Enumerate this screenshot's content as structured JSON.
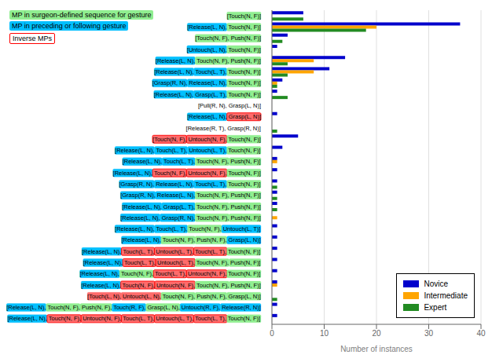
{
  "chart_data": {
    "type": "bar",
    "orientation": "horizontal",
    "xlabel": "Number of instances",
    "xlim": [
      0,
      40
    ],
    "xticks": [
      0,
      10,
      20,
      30,
      40
    ],
    "grid": true,
    "legend": "lower right",
    "categories": [
      "[Touch(N, F)]",
      "[Release(L, N), Touch(N, F)]",
      "[Touch(N, F), Push(N, F)]",
      "[Untouch(L, N), Touch(N, F)]",
      "[Release(L, N), Touch(N, F), Push(N, F)]",
      "[Release(L, N), Touch(L, T), Touch(N, F)]",
      "[Grasp(R, N), Release(L, N), Touch(N, F)]",
      "[Release(L, N), Grasp(L, T), Touch(N, F)]",
      "[Pull(R, N), Grasp(L, N)]",
      "[Release(L, N), Grasp(L, N)]",
      "[Release(R, T), Grasp(R, N)]",
      "[Touch(N, F), Untouch(N, F), Touch(N, F)]",
      "[Release(L, N), Touch(L, T), Untouch(L, T), Touch(N, F)]",
      "[Release(L, N), Touch(L, T), Touch(N, F), Push(N, F)]",
      "[Release(L, N), Touch(N, F), Untouch(N, F), Touch(N, F)]",
      "[Grasp(R, N), Release(L, N), Touch(L, T), Touch(N, F)]",
      "[Grasp(R, N), Release(L, N), Touch(N, F), Push(N, F)]",
      "[Release(L, N), Grasp(L, T), Touch(N, F), Push(N, F)]",
      "[Release(L, N), Grasp(R, N), Touch(N, F), Push(N, F)]",
      "[Release(L, N), Touch(L, T), Touch(N, F), Untouch(L, T)]",
      "[Release(L, N), Touch(N, F), Push(N, F), Grasp(L, N)]",
      "[Release(L, N), Touch(L, T), Untouch(L, T), Touch(L, T), Touch(N, F)]",
      "[Release(L, N), Touch(L, T), Untouch(L, T), Touch(N, F), Push(N, F)]",
      "[Release(L, N), Touch(N, F), Touch(L, T), Untouch(N, F), Touch(N, F)]",
      "[Release(L, N), Touch(N, F), Untouch(N, F), Touch(N, F), Push(N, F)]",
      "[Touch(L, N), Untouch(L, N), Touch(N, F), Push(N, F), Grasp(L, N)]",
      "[Release(L, N), Touch(N, F), Push(N, F), Touch(R, F), Grasp(L, N), Untouch(R, F), Release(R, N)]",
      "[Release(L, N), Touch(N, F), Untouch(N, F), Touch(L, T), Untouch(L, T), Touch(L, T), Touch(N, F)]"
    ],
    "category_tokens": [
      [
        [
          "[Touch(N, F)]",
          "#90EE90",
          false
        ]
      ],
      [
        [
          "[Release(L, N),",
          "#00BFFF",
          false
        ],
        [
          " Touch(N, F)]",
          "#90EE90",
          false
        ]
      ],
      [
        [
          "[Touch(N, F),",
          "#90EE90",
          false
        ],
        [
          " Push(N, F)]",
          "#90EE90",
          false
        ]
      ],
      [
        [
          "[Untouch(L, N),",
          "#00BFFF",
          false
        ],
        [
          " Touch(N, F)]",
          "#90EE90",
          false
        ]
      ],
      [
        [
          "[Release(L, N),",
          "#00BFFF",
          false
        ],
        [
          " Touch(N, F),",
          "#90EE90",
          false
        ],
        [
          " Push(N, F)]",
          "#90EE90",
          false
        ]
      ],
      [
        [
          "[Release(L, N),",
          "#00BFFF",
          false
        ],
        [
          " Touch(L, T),",
          "#00BFFF",
          false
        ],
        [
          " Touch(N, F)]",
          "#90EE90",
          false
        ]
      ],
      [
        [
          "[Grasp(R, N),",
          "#00BFFF",
          false
        ],
        [
          " Release(L, N),",
          "#00BFFF",
          false
        ],
        [
          " Touch(N, F)]",
          "#90EE90",
          false
        ]
      ],
      [
        [
          "[Release(L, N),",
          "#00BFFF",
          false
        ],
        [
          " Grasp(L, T),",
          "#00BFFF",
          false
        ],
        [
          " Touch(N, F)]",
          "#90EE90",
          false
        ]
      ],
      [
        [
          "[Pull(R, N),",
          "#FFFFFF",
          false
        ],
        [
          " Grasp(L, N)]",
          "#FFFFFF",
          false
        ]
      ],
      [
        [
          "[Release(L, N),",
          "#00BFFF",
          false
        ],
        [
          " Grasp(L, N)]",
          "#FF6B6B",
          true
        ]
      ],
      [
        [
          "[Release(R, T),",
          "#FFFFFF",
          false
        ],
        [
          " Grasp(R, N)]",
          "#FFFFFF",
          false
        ]
      ],
      [
        [
          "[Touch(N, F),",
          "#FF6B6B",
          true
        ],
        [
          " Untouch(N, F),",
          "#FF6B6B",
          true
        ],
        [
          " Touch(N, F)]",
          "#90EE90",
          false
        ]
      ],
      [
        [
          "[Release(L, N),",
          "#00BFFF",
          false
        ],
        [
          " Touch(L, T),",
          "#00BFFF",
          false
        ],
        [
          " Untouch(L, T),",
          "#00BFFF",
          false
        ],
        [
          " Touch(N, F)]",
          "#90EE90",
          false
        ]
      ],
      [
        [
          "[Release(L, N),",
          "#00BFFF",
          false
        ],
        [
          " Touch(L, T),",
          "#00BFFF",
          false
        ],
        [
          " Touch(N, F),",
          "#90EE90",
          false
        ],
        [
          " Push(N, F)]",
          "#90EE90",
          false
        ]
      ],
      [
        [
          "[Release(L, N),",
          "#00BFFF",
          false
        ],
        [
          " Touch(N, F),",
          "#FF6B6B",
          true
        ],
        [
          " Untouch(N, F),",
          "#FF6B6B",
          true
        ],
        [
          " Touch(N, F)]",
          "#90EE90",
          false
        ]
      ],
      [
        [
          "[Grasp(R, N),",
          "#00BFFF",
          false
        ],
        [
          " Release(L, N),",
          "#00BFFF",
          false
        ],
        [
          " Touch(L, T),",
          "#00BFFF",
          false
        ],
        [
          " Touch(N, F)]",
          "#90EE90",
          false
        ]
      ],
      [
        [
          "[Grasp(R, N),",
          "#00BFFF",
          false
        ],
        [
          " Release(L, N),",
          "#00BFFF",
          false
        ],
        [
          " Touch(N, F),",
          "#90EE90",
          false
        ],
        [
          " Push(N, F)]",
          "#90EE90",
          false
        ]
      ],
      [
        [
          "[Release(L, N),",
          "#00BFFF",
          false
        ],
        [
          " Grasp(L, T),",
          "#00BFFF",
          false
        ],
        [
          " Touch(N, F),",
          "#90EE90",
          false
        ],
        [
          " Push(N, F)]",
          "#90EE90",
          false
        ]
      ],
      [
        [
          "[Release(L, N),",
          "#00BFFF",
          false
        ],
        [
          " Grasp(R, N),",
          "#00BFFF",
          false
        ],
        [
          " Touch(N, F),",
          "#90EE90",
          false
        ],
        [
          " Push(N, F)]",
          "#90EE90",
          false
        ]
      ],
      [
        [
          "[Release(L, N),",
          "#00BFFF",
          false
        ],
        [
          " Touch(L, T),",
          "#00BFFF",
          false
        ],
        [
          " Touch(N, F),",
          "#90EE90",
          false
        ],
        [
          " Untouch(L, T)]",
          "#00BFFF",
          false
        ]
      ],
      [
        [
          "[Release(L, N),",
          "#00BFFF",
          false
        ],
        [
          " Touch(N, F),",
          "#90EE90",
          false
        ],
        [
          " Push(N, F),",
          "#90EE90",
          false
        ],
        [
          " Grasp(L, N)]",
          "#00BFFF",
          false
        ]
      ],
      [
        [
          "[Release(L, N),",
          "#00BFFF",
          false
        ],
        [
          " Touch(L, T),",
          "#FF6B6B",
          true
        ],
        [
          " Untouch(L, T),",
          "#FF6B6B",
          true
        ],
        [
          " Touch(L, T),",
          "#FF6B6B",
          true
        ],
        [
          " Touch(N, F)]",
          "#90EE90",
          false
        ]
      ],
      [
        [
          "[Release(L, N),",
          "#00BFFF",
          false
        ],
        [
          " Touch(L, T),",
          "#FF6B6B",
          true
        ],
        [
          " Untouch(L, T),",
          "#FF6B6B",
          true
        ],
        [
          " Touch(N, F),",
          "#90EE90",
          false
        ],
        [
          " Push(N, F)]",
          "#90EE90",
          false
        ]
      ],
      [
        [
          "[Release(L, N),",
          "#00BFFF",
          false
        ],
        [
          " Touch(N, F),",
          "#90EE90",
          false
        ],
        [
          " Touch(L, T),",
          "#FF6B6B",
          true
        ],
        [
          " Untouch(N, F),",
          "#FF6B6B",
          true
        ],
        [
          " Touch(N, F)]",
          "#90EE90",
          false
        ]
      ],
      [
        [
          "[Release(L, N),",
          "#00BFFF",
          false
        ],
        [
          " Touch(N, F),",
          "#FF6B6B",
          true
        ],
        [
          " Untouch(N, F),",
          "#FF6B6B",
          true
        ],
        [
          " Touch(N, F),",
          "#90EE90",
          false
        ],
        [
          " Push(N, F)]",
          "#90EE90",
          false
        ]
      ],
      [
        [
          "[Touch(L, N),",
          "#FF6B6B",
          false
        ],
        [
          " Untouch(L, N),",
          "#FF6B6B",
          false
        ],
        [
          " Touch(N, F),",
          "#90EE90",
          false
        ],
        [
          " Push(N, F),",
          "#90EE90",
          false
        ],
        [
          " Grasp(L, N)]",
          "#90EE90",
          false
        ]
      ],
      [
        [
          "[Release(L, N),",
          "#00BFFF",
          false
        ],
        [
          " Touch(N, F),",
          "#90EE90",
          false
        ],
        [
          " Push(N, F),",
          "#90EE90",
          false
        ],
        [
          " Touch(R, F),",
          "#00BFFF",
          false
        ],
        [
          " Grasp(L, N),",
          "#90EE90",
          false
        ],
        [
          " Untouch(R, F),",
          "#00BFFF",
          false
        ],
        [
          " Release(R, N)]",
          "#00BFFF",
          false
        ]
      ],
      [
        [
          "[Release(L, N),",
          "#00BFFF",
          false
        ],
        [
          " Touch(N, F),",
          "#FF6B6B",
          true
        ],
        [
          " Untouch(N, F),",
          "#FF6B6B",
          true
        ],
        [
          " Touch(L, T),",
          "#FF6B6B",
          true
        ],
        [
          " Untouch(L, T),",
          "#FF6B6B",
          true
        ],
        [
          " Touch(L, T),",
          "#FF6B6B",
          true
        ],
        [
          " Touch(N, F)]",
          "#90EE90",
          false
        ]
      ]
    ],
    "series": [
      {
        "name": "Novice",
        "color": "#0000CC",
        "values": [
          6,
          36,
          3,
          1,
          14,
          11,
          2,
          1,
          0,
          1,
          0,
          5,
          2,
          1,
          1,
          1,
          1,
          1,
          0,
          1,
          1,
          1,
          1,
          1,
          1,
          0,
          1,
          1
        ]
      },
      {
        "name": "Intermediate",
        "color": "#FFA500",
        "values": [
          0,
          20,
          0,
          0,
          8,
          8,
          1,
          0,
          0,
          0,
          0,
          0,
          0,
          1,
          0,
          0,
          0,
          0,
          1,
          0,
          0,
          0,
          0,
          0,
          1,
          0,
          0,
          0
        ]
      },
      {
        "name": "Expert",
        "color": "#228B22",
        "values": [
          6,
          18,
          2,
          0,
          3,
          3,
          1,
          3,
          0,
          0,
          1,
          0,
          0,
          0,
          0,
          1,
          1,
          1,
          0,
          0,
          0,
          0,
          0,
          0,
          0,
          1,
          0,
          0
        ]
      }
    ],
    "annotations": [
      {
        "text": "MP in surgeon-defined sequence for gesture",
        "color": "#90EE90"
      },
      {
        "text": "MP in preceding or following gesture",
        "color": "#00BFFF"
      },
      {
        "text": "Inverse MPs",
        "color": "#FFFFFF",
        "edge_color": "red"
      }
    ]
  }
}
